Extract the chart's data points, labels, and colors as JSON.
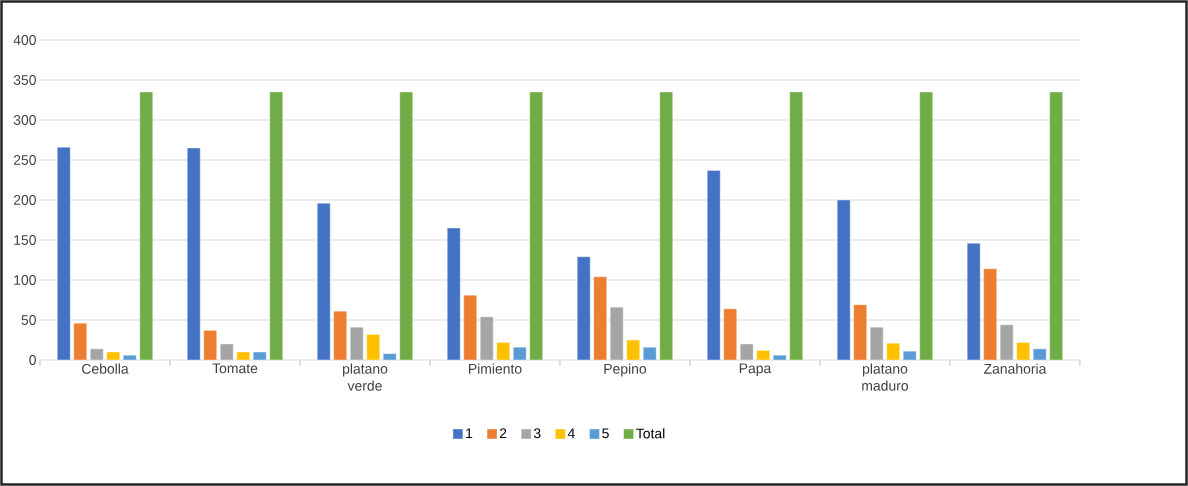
{
  "chart_data": {
    "type": "bar",
    "categories": [
      "Cebolla",
      "Tomate",
      "platano verde",
      "Pimiento",
      "Pepino",
      "Papa",
      "platano maduro",
      "Zanahoria"
    ],
    "series": [
      {
        "name": "1",
        "color": "#4472c4",
        "values": [
          266,
          265,
          196,
          165,
          129,
          237,
          200,
          146
        ]
      },
      {
        "name": "2",
        "color": "#ed7d31",
        "values": [
          46,
          37,
          61,
          81,
          104,
          64,
          69,
          114
        ]
      },
      {
        "name": "3",
        "color": "#a5a5a5",
        "values": [
          14,
          20,
          41,
          54,
          66,
          20,
          41,
          44
        ]
      },
      {
        "name": "4",
        "color": "#ffc000",
        "values": [
          10,
          10,
          32,
          22,
          25,
          12,
          21,
          22
        ]
      },
      {
        "name": "5",
        "color": "#5b9bd5",
        "values": [
          6,
          10,
          8,
          16,
          16,
          6,
          11,
          14
        ]
      },
      {
        "name": "Total",
        "color": "#70ad47",
        "values": [
          335,
          335,
          335,
          335,
          335,
          335,
          335,
          335
        ]
      }
    ],
    "ylim": [
      0,
      400
    ],
    "yticks": [
      0,
      50,
      100,
      150,
      200,
      250,
      300,
      350,
      400
    ],
    "grid": "y",
    "legend": "bottom"
  }
}
